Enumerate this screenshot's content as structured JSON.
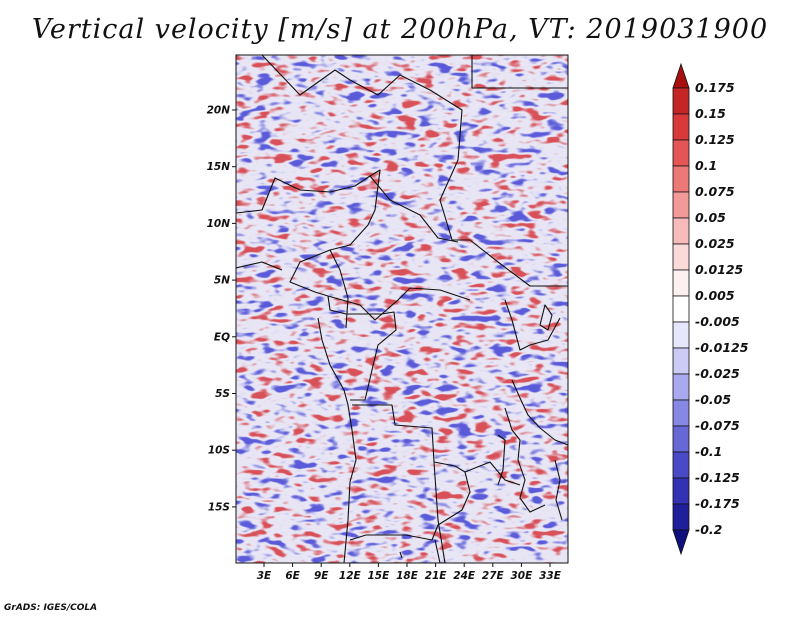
{
  "title": "Vertical velocity [m/s] at 200hPa, VT: 2019031900",
  "credit": "GrADS: IGES/COLA",
  "map": {
    "lat_labels": [
      "20N",
      "15N",
      "10N",
      "5N",
      "EQ",
      "5S",
      "10S",
      "15S"
    ],
    "lon_labels": [
      "3E",
      "6E",
      "9E",
      "12E",
      "15E",
      "18E",
      "21E",
      "24E",
      "27E",
      "30E",
      "33E"
    ],
    "field": "vertical velocity",
    "pattern": "noisy alternating updrafts (red) and downdrafts (blue), stronger red streaks over north-west and coastal Gulf of Guinea"
  },
  "colorbar": {
    "levels": [
      "0.175",
      "0.15",
      "0.125",
      "0.1",
      "0.075",
      "0.05",
      "0.025",
      "0.0125",
      "0.005",
      "-0.005",
      "-0.0125",
      "-0.025",
      "-0.05",
      "-0.075",
      "-0.1",
      "-0.125",
      "-0.175",
      "-0.2"
    ],
    "colors": [
      "#a80f0f",
      "#c42525",
      "#d83a3a",
      "#e45656",
      "#ec7878",
      "#f29999",
      "#f7bbbb",
      "#fbdada",
      "#fdf0f0",
      "#ffffff",
      "#e6e6fc",
      "#cbcbf6",
      "#a9a9ef",
      "#8787e4",
      "#6767d6",
      "#4a4ac6",
      "#3232b2",
      "#1f1f9a",
      "#0f0f7e"
    ]
  }
}
